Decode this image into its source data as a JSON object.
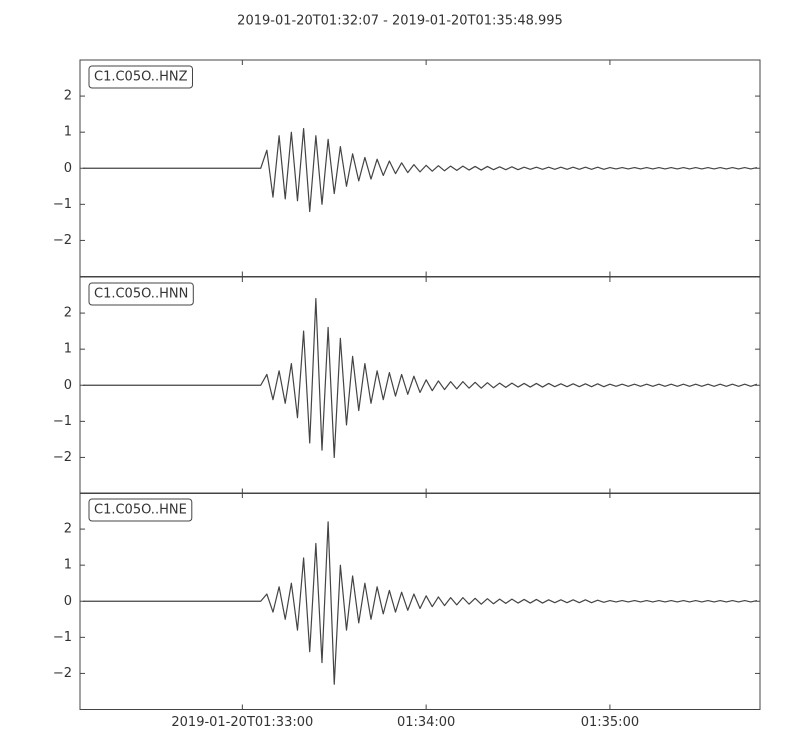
{
  "chart_data": {
    "type": "line",
    "title": "2019-01-20T01:32:07  -  2019-01-20T01:35:48.995",
    "xlim": [
      "2019-01-20T01:32:07",
      "2019-01-20T01:35:48.995"
    ],
    "xticks": [
      "2019-01-20T01:33:00",
      {
        "value": "2019-01-20T01:34:00",
        "label": "01:34:00"
      },
      {
        "value": "2019-01-20T01:35:00",
        "label": "01:35:00"
      }
    ],
    "x": [
      "2019-01-20T01:32:08",
      "2019-01-20T01:32:10",
      "2019-01-20T01:32:12",
      "2019-01-20T01:32:14",
      "2019-01-20T01:32:16",
      "2019-01-20T01:32:18",
      "2019-01-20T01:32:20",
      "2019-01-20T01:32:22",
      "2019-01-20T01:32:24",
      "2019-01-20T01:32:26",
      "2019-01-20T01:32:28",
      "2019-01-20T01:32:30",
      "2019-01-20T01:32:32",
      "2019-01-20T01:32:34",
      "2019-01-20T01:32:36",
      "2019-01-20T01:32:38",
      "2019-01-20T01:32:40",
      "2019-01-20T01:32:42",
      "2019-01-20T01:32:44",
      "2019-01-20T01:32:46",
      "2019-01-20T01:32:48",
      "2019-01-20T01:32:50",
      "2019-01-20T01:32:52",
      "2019-01-20T01:32:54",
      "2019-01-20T01:32:56",
      "2019-01-20T01:32:58",
      "2019-01-20T01:33:00",
      "2019-01-20T01:33:02",
      "2019-01-20T01:33:04",
      "2019-01-20T01:33:06",
      "2019-01-20T01:33:08",
      "2019-01-20T01:33:10",
      "2019-01-20T01:33:12",
      "2019-01-20T01:33:14",
      "2019-01-20T01:33:16",
      "2019-01-20T01:33:18",
      "2019-01-20T01:33:20",
      "2019-01-20T01:33:22",
      "2019-01-20T01:33:24",
      "2019-01-20T01:33:26",
      "2019-01-20T01:33:28",
      "2019-01-20T01:33:30",
      "2019-01-20T01:33:32",
      "2019-01-20T01:33:34",
      "2019-01-20T01:33:36",
      "2019-01-20T01:33:38",
      "2019-01-20T01:33:40",
      "2019-01-20T01:33:42",
      "2019-01-20T01:33:44",
      "2019-01-20T01:33:46",
      "2019-01-20T01:33:48",
      "2019-01-20T01:33:50",
      "2019-01-20T01:33:52",
      "2019-01-20T01:33:54",
      "2019-01-20T01:33:56",
      "2019-01-20T01:33:58",
      "2019-01-20T01:34:00",
      "2019-01-20T01:34:02",
      "2019-01-20T01:34:04",
      "2019-01-20T01:34:06",
      "2019-01-20T01:34:08",
      "2019-01-20T01:34:10",
      "2019-01-20T01:34:12",
      "2019-01-20T01:34:14",
      "2019-01-20T01:34:16",
      "2019-01-20T01:34:18",
      "2019-01-20T01:34:20",
      "2019-01-20T01:34:22",
      "2019-01-20T01:34:24",
      "2019-01-20T01:34:26",
      "2019-01-20T01:34:28",
      "2019-01-20T01:34:30",
      "2019-01-20T01:34:32",
      "2019-01-20T01:34:34",
      "2019-01-20T01:34:36",
      "2019-01-20T01:34:38",
      "2019-01-20T01:34:40",
      "2019-01-20T01:34:42",
      "2019-01-20T01:34:44",
      "2019-01-20T01:34:46",
      "2019-01-20T01:34:48",
      "2019-01-20T01:34:50",
      "2019-01-20T01:34:52",
      "2019-01-20T01:34:54",
      "2019-01-20T01:34:56",
      "2019-01-20T01:34:58",
      "2019-01-20T01:35:00",
      "2019-01-20T01:35:02",
      "2019-01-20T01:35:04",
      "2019-01-20T01:35:06",
      "2019-01-20T01:35:08",
      "2019-01-20T01:35:10",
      "2019-01-20T01:35:12",
      "2019-01-20T01:35:14",
      "2019-01-20T01:35:16",
      "2019-01-20T01:35:18",
      "2019-01-20T01:35:20",
      "2019-01-20T01:35:22",
      "2019-01-20T01:35:24",
      "2019-01-20T01:35:26",
      "2019-01-20T01:35:28",
      "2019-01-20T01:35:30",
      "2019-01-20T01:35:32",
      "2019-01-20T01:35:34",
      "2019-01-20T01:35:36",
      "2019-01-20T01:35:38",
      "2019-01-20T01:35:40",
      "2019-01-20T01:35:42",
      "2019-01-20T01:35:44",
      "2019-01-20T01:35:46",
      "2019-01-20T01:35:48"
    ],
    "series": [
      {
        "name": "C1.C05O..HNZ",
        "color": "#444444",
        "ylim": [
          -3,
          3
        ],
        "yticks": [
          {
            "value": -2,
            "label": "−2"
          },
          {
            "value": -1,
            "label": "−1"
          },
          0,
          1,
          2
        ],
        "values": [
          0,
          0,
          0,
          0,
          0,
          0,
          0,
          0,
          0,
          0,
          0,
          0,
          0,
          0,
          0,
          0,
          0,
          0,
          0,
          0,
          0,
          0,
          0,
          0,
          0,
          0,
          0,
          0,
          0,
          0,
          0.5,
          -0.8,
          0.9,
          -0.85,
          1.0,
          -0.9,
          1.1,
          -1.2,
          0.9,
          -1.0,
          0.8,
          -0.7,
          0.6,
          -0.5,
          0.4,
          -0.35,
          0.3,
          -0.3,
          0.25,
          -0.2,
          0.2,
          -0.15,
          0.15,
          -0.12,
          0.1,
          -0.1,
          0.08,
          -0.08,
          0.07,
          -0.07,
          0.06,
          -0.06,
          0.06,
          -0.05,
          0.05,
          -0.05,
          0.05,
          -0.04,
          0.04,
          -0.04,
          0.04,
          -0.04,
          0.03,
          -0.03,
          0.03,
          -0.03,
          0.03,
          -0.03,
          0.03,
          -0.03,
          0.03,
          -0.03,
          0.03,
          -0.03,
          0.03,
          -0.03,
          0.02,
          -0.02,
          0.02,
          -0.02,
          0.02,
          -0.02,
          0.02,
          -0.02,
          0.02,
          -0.02,
          0.02,
          -0.02,
          0.02,
          -0.02,
          0.02,
          -0.02,
          0.02,
          -0.02,
          0.02,
          -0.02,
          0.02,
          -0.02,
          0.02,
          -0.02,
          0.02
        ]
      },
      {
        "name": "C1.C05O..HNN",
        "color": "#444444",
        "ylim": [
          -3,
          3
        ],
        "yticks": [
          {
            "value": -2,
            "label": "−2"
          },
          {
            "value": -1,
            "label": "−1"
          },
          0,
          1,
          2
        ],
        "values": [
          0,
          0,
          0,
          0,
          0,
          0,
          0,
          0,
          0,
          0,
          0,
          0,
          0,
          0,
          0,
          0,
          0,
          0,
          0,
          0,
          0,
          0,
          0,
          0,
          0,
          0,
          0,
          0,
          0,
          0,
          0.3,
          -0.4,
          0.4,
          -0.5,
          0.6,
          -0.9,
          1.5,
          -1.6,
          2.4,
          -1.8,
          1.6,
          -2.0,
          1.3,
          -1.1,
          0.8,
          -0.7,
          0.6,
          -0.5,
          0.4,
          -0.4,
          0.35,
          -0.3,
          0.3,
          -0.25,
          0.25,
          -0.2,
          0.15,
          -0.15,
          0.12,
          -0.12,
          0.1,
          -0.1,
          0.1,
          -0.08,
          0.08,
          -0.08,
          0.07,
          -0.07,
          0.06,
          -0.06,
          0.06,
          -0.05,
          0.05,
          -0.05,
          0.05,
          -0.05,
          0.05,
          -0.04,
          0.04,
          -0.04,
          0.04,
          -0.04,
          0.04,
          -0.04,
          0.04,
          -0.04,
          0.03,
          -0.03,
          0.03,
          -0.03,
          0.03,
          -0.03,
          0.03,
          -0.03,
          0.03,
          -0.03,
          0.03,
          -0.03,
          0.03,
          -0.03,
          0.03,
          -0.03,
          0.03,
          -0.03,
          0.03,
          -0.03,
          0.03,
          -0.03,
          0.03,
          -0.03,
          0.03
        ]
      },
      {
        "name": "C1.C05O..HNE",
        "color": "#444444",
        "ylim": [
          -3,
          3
        ],
        "yticks": [
          {
            "value": -2,
            "label": "−2"
          },
          {
            "value": -1,
            "label": "−1"
          },
          0,
          1,
          2
        ],
        "values": [
          0,
          0,
          0,
          0,
          0,
          0,
          0,
          0,
          0,
          0,
          0,
          0,
          0,
          0,
          0,
          0,
          0,
          0,
          0,
          0,
          0,
          0,
          0,
          0,
          0,
          0,
          0,
          0,
          0,
          0,
          0.2,
          -0.3,
          0.4,
          -0.5,
          0.5,
          -0.8,
          1.2,
          -1.4,
          1.6,
          -1.7,
          2.2,
          -2.3,
          1.0,
          -0.8,
          0.7,
          -0.6,
          0.5,
          -0.5,
          0.4,
          -0.35,
          0.3,
          -0.3,
          0.25,
          -0.25,
          0.2,
          -0.2,
          0.15,
          -0.15,
          0.12,
          -0.12,
          0.1,
          -0.1,
          0.1,
          -0.08,
          0.08,
          -0.08,
          0.07,
          -0.07,
          0.06,
          -0.06,
          0.06,
          -0.05,
          0.05,
          -0.05,
          0.05,
          -0.05,
          0.04,
          -0.04,
          0.04,
          -0.04,
          0.04,
          -0.04,
          0.04,
          -0.04,
          0.03,
          -0.03,
          0.02,
          -0.02,
          0.02,
          -0.02,
          0.02,
          -0.02,
          0.02,
          -0.02,
          0.02,
          -0.02,
          0.02,
          -0.02,
          0.02,
          -0.02,
          0.02,
          -0.02,
          0.02,
          -0.02,
          0.02,
          -0.02,
          0.02,
          -0.02,
          0.02,
          -0.02,
          0.02
        ]
      }
    ]
  }
}
